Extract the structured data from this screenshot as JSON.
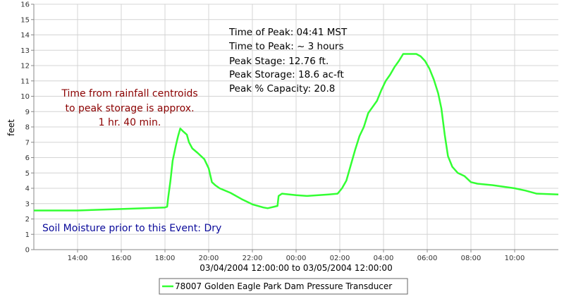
{
  "chart_data": {
    "type": "line",
    "ylabel": "feet",
    "xlabel": "03/04/2004 12:00:00 to 03/05/2004 12:00:00",
    "ylim": [
      0,
      16
    ],
    "xlim": [
      12.0,
      36.0
    ],
    "y_ticks": [
      "0",
      "1",
      "2",
      "3",
      "4",
      "5",
      "6",
      "7",
      "8",
      "9",
      "10",
      "11",
      "12",
      "13",
      "14",
      "15",
      "16"
    ],
    "x_ticks": [
      {
        "value": 14,
        "label": "14:00"
      },
      {
        "value": 16,
        "label": "16:00"
      },
      {
        "value": 18,
        "label": "18:00"
      },
      {
        "value": 20,
        "label": "20:00"
      },
      {
        "value": 22,
        "label": "22:00"
      },
      {
        "value": 24,
        "label": "00:00"
      },
      {
        "value": 26,
        "label": "02:00"
      },
      {
        "value": 28,
        "label": "04:00"
      },
      {
        "value": 30,
        "label": "06:00"
      },
      {
        "value": 32,
        "label": "08:00"
      },
      {
        "value": 34,
        "label": "10:00"
      }
    ],
    "grid": true,
    "legend_position": "bottom-center",
    "series": [
      {
        "name": "78007 Golden Eagle Park Dam Pressure Transducer",
        "color": "#33ff33",
        "points": [
          [
            12.0,
            2.55
          ],
          [
            14.0,
            2.55
          ],
          [
            16.0,
            2.65
          ],
          [
            18.0,
            2.75
          ],
          [
            18.1,
            2.8
          ],
          [
            18.15,
            3.4
          ],
          [
            18.25,
            4.5
          ],
          [
            18.35,
            5.8
          ],
          [
            18.5,
            6.8
          ],
          [
            18.6,
            7.4
          ],
          [
            18.7,
            7.9
          ],
          [
            18.8,
            7.75
          ],
          [
            19.0,
            7.5
          ],
          [
            19.1,
            7.0
          ],
          [
            19.25,
            6.6
          ],
          [
            19.5,
            6.3
          ],
          [
            19.8,
            5.9
          ],
          [
            20.0,
            5.3
          ],
          [
            20.15,
            4.4
          ],
          [
            20.3,
            4.2
          ],
          [
            20.5,
            4.0
          ],
          [
            21.0,
            3.7
          ],
          [
            21.5,
            3.3
          ],
          [
            22.0,
            2.95
          ],
          [
            22.5,
            2.75
          ],
          [
            22.7,
            2.7
          ],
          [
            23.0,
            2.8
          ],
          [
            23.15,
            2.85
          ],
          [
            23.2,
            3.5
          ],
          [
            23.35,
            3.65
          ],
          [
            24.0,
            3.55
          ],
          [
            24.5,
            3.5
          ],
          [
            25.5,
            3.6
          ],
          [
            25.9,
            3.65
          ],
          [
            26.1,
            4.0
          ],
          [
            26.3,
            4.5
          ],
          [
            26.5,
            5.5
          ],
          [
            26.7,
            6.5
          ],
          [
            26.9,
            7.4
          ],
          [
            27.1,
            8.0
          ],
          [
            27.3,
            8.9
          ],
          [
            27.5,
            9.3
          ],
          [
            27.7,
            9.7
          ],
          [
            27.9,
            10.4
          ],
          [
            28.1,
            11.0
          ],
          [
            28.3,
            11.4
          ],
          [
            28.5,
            11.9
          ],
          [
            28.7,
            12.3
          ],
          [
            28.9,
            12.76
          ],
          [
            29.2,
            12.76
          ],
          [
            29.5,
            12.76
          ],
          [
            29.7,
            12.6
          ],
          [
            29.9,
            12.3
          ],
          [
            30.1,
            11.8
          ],
          [
            30.3,
            11.1
          ],
          [
            30.5,
            10.2
          ],
          [
            30.65,
            9.2
          ],
          [
            30.8,
            7.5
          ],
          [
            30.95,
            6.1
          ],
          [
            31.15,
            5.4
          ],
          [
            31.4,
            5.0
          ],
          [
            31.7,
            4.8
          ],
          [
            32.0,
            4.4
          ],
          [
            32.3,
            4.3
          ],
          [
            33.0,
            4.2
          ],
          [
            34.0,
            4.0
          ],
          [
            34.5,
            3.85
          ],
          [
            35.0,
            3.65
          ],
          [
            36.0,
            3.6
          ]
        ]
      }
    ],
    "annotations": {
      "peak_info": [
        "Time of Peak: 04:41 MST",
        "Time to Peak: ~ 3 hours",
        "Peak Stage: 12.76 ft.",
        "Peak Storage: 18.6 ac-ft",
        "Peak % Capacity: 20.8"
      ],
      "centroid_note": [
        "Time from rainfall centroids",
        "to peak storage is approx.",
        "1 hr. 40 min."
      ],
      "soil_moisture": "Soil Moisture prior to this Event: Dry"
    }
  }
}
